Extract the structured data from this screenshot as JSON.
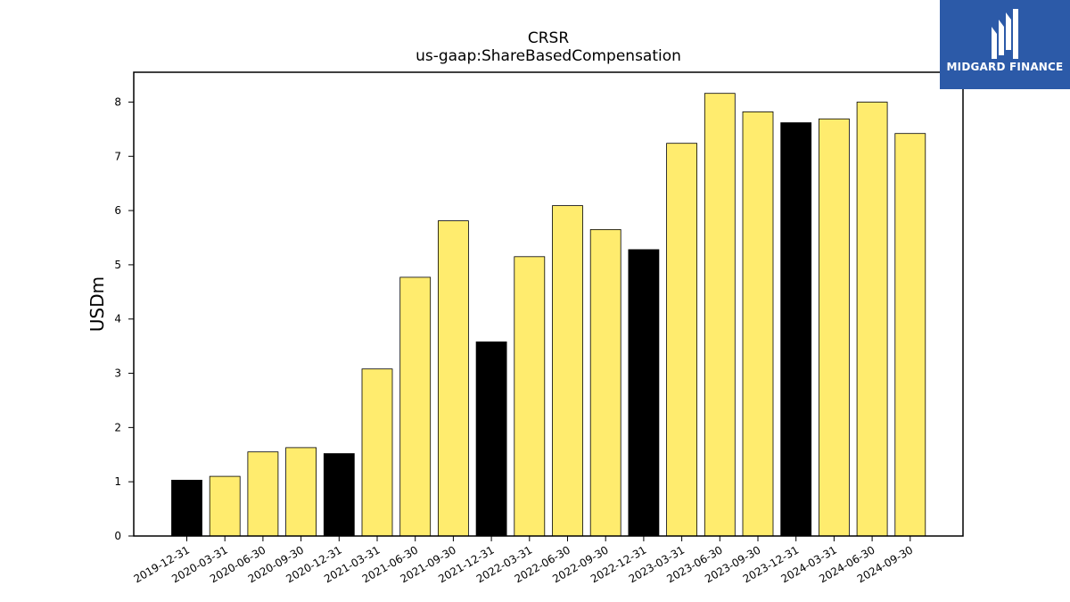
{
  "brand": {
    "name": "MIDGARD FINANCE",
    "logo_icon": "midgard-m-monogram-icon",
    "bg_color": "#2c5aa8"
  },
  "chart_data": {
    "type": "bar",
    "title": "CRSR",
    "subtitle": "us-gaap:ShareBasedCompensation",
    "xlabel": "",
    "ylabel": "USDm",
    "ylim": [
      0,
      8.55
    ],
    "yticks": [
      0,
      1,
      2,
      3,
      4,
      5,
      6,
      7,
      8
    ],
    "grid": false,
    "categories": [
      "2019-12-31",
      "2020-03-31",
      "2020-06-30",
      "2020-09-30",
      "2020-12-31",
      "2021-03-31",
      "2021-06-30",
      "2021-09-30",
      "2021-12-31",
      "2022-03-31",
      "2022-06-30",
      "2022-09-30",
      "2022-12-31",
      "2023-03-31",
      "2023-06-30",
      "2023-09-30",
      "2023-12-31",
      "2024-03-31",
      "2024-06-30",
      "2024-09-30"
    ],
    "values": [
      1.03,
      1.1,
      1.55,
      1.63,
      1.52,
      3.08,
      4.77,
      5.81,
      3.58,
      5.15,
      6.09,
      5.65,
      5.28,
      7.24,
      8.16,
      7.82,
      7.62,
      7.69,
      8.0,
      7.42
    ],
    "highlight_indices": [
      0,
      4,
      8,
      12,
      16
    ],
    "colors": {
      "default": "#ffec6e",
      "highlight": "#000000",
      "edge": "#000000"
    }
  }
}
